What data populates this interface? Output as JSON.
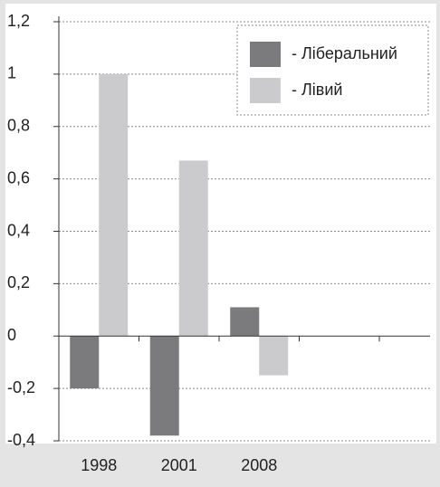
{
  "chart_data": {
    "type": "bar",
    "categories": [
      "1998",
      "2001",
      "2008",
      null,
      null
    ],
    "series": [
      {
        "name": "- Ліберальний",
        "color": "#7b7b7d",
        "values": [
          -0.2,
          -0.38,
          0.11,
          null,
          null
        ]
      },
      {
        "name": "- Лівий",
        "color": "#cbcbcd",
        "values": [
          1.0,
          0.67,
          -0.15,
          null,
          null
        ]
      }
    ],
    "ylim": [
      -0.4,
      1.2
    ],
    "yticks": [
      {
        "value": -0.4,
        "label": "-0,4"
      },
      {
        "value": -0.2,
        "label": "-0,2"
      },
      0,
      {
        "value": 0.2,
        "label": "0,2"
      },
      {
        "value": 0.4,
        "label": "0,4"
      },
      {
        "value": 0.6,
        "label": "0,6"
      },
      {
        "value": 0.8,
        "label": "0,8"
      },
      1,
      {
        "value": 1.2,
        "label": "1,2"
      }
    ],
    "grid": true,
    "legend": "upper right"
  }
}
